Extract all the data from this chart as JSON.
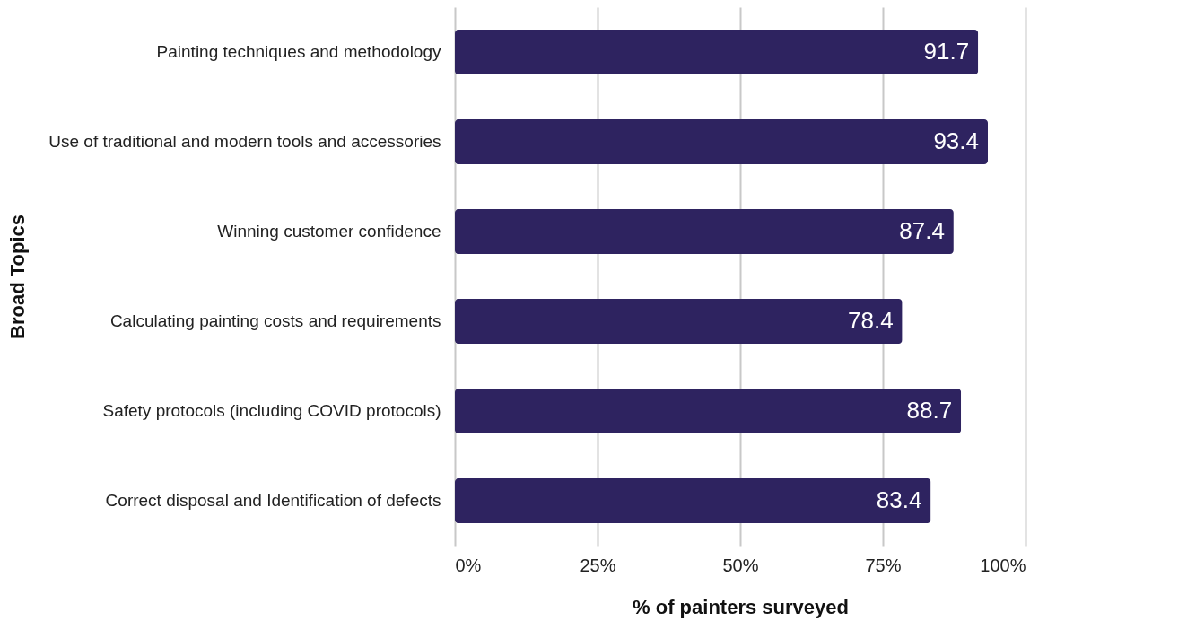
{
  "chart_data": {
    "type": "bar",
    "orientation": "horizontal",
    "ylabel": "Broad Topics",
    "xlabel": "% of painters surveyed",
    "categories": [
      "Painting techniques and methodology",
      "Use of traditional and modern tools and accessories",
      "Winning customer confidence",
      "Calculating painting costs and requirements",
      "Safety protocols (including COVID protocols)",
      "Correct disposal and Identification of defects"
    ],
    "values": [
      91.7,
      93.4,
      87.4,
      78.4,
      88.7,
      83.4
    ],
    "color": "#2e2360",
    "xlim": [
      0,
      100
    ],
    "xticks": [
      {
        "value": 0,
        "label": "0%"
      },
      {
        "value": 25,
        "label": "25%"
      },
      {
        "value": 50,
        "label": "50%"
      },
      {
        "value": 75,
        "label": "75%"
      },
      {
        "value": 100,
        "label": "100%"
      }
    ],
    "grid": "x",
    "data_labels": true
  }
}
